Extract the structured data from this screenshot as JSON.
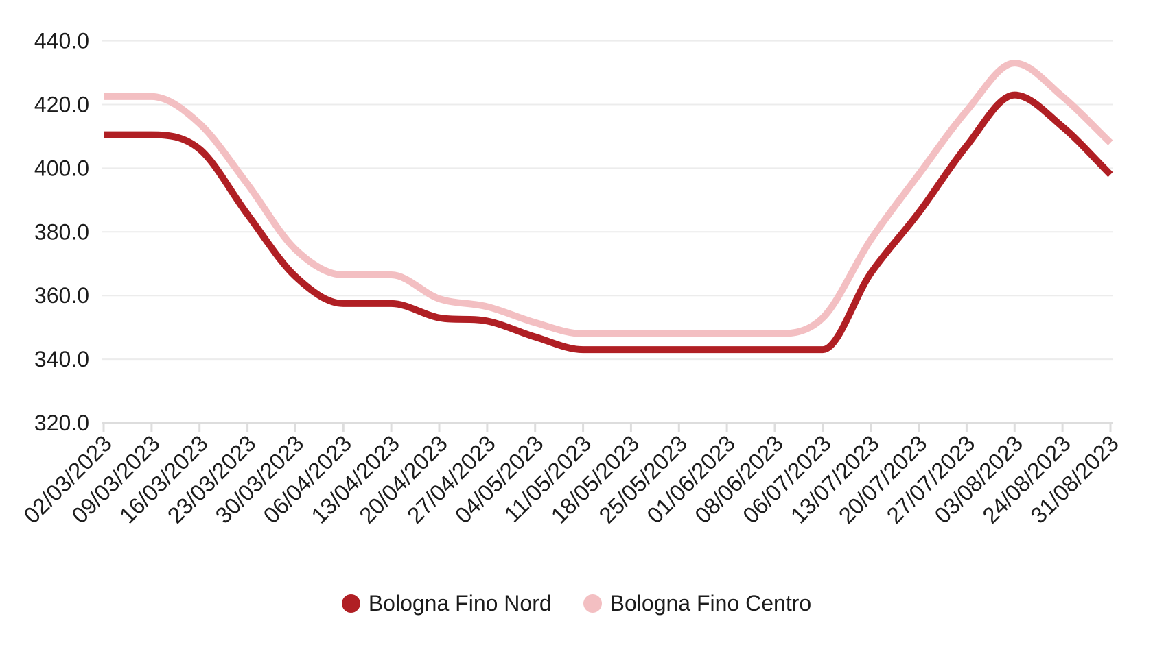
{
  "chart_data": {
    "type": "line",
    "title": "",
    "curve": "smooth-monotone",
    "categories": [
      "02/03/2023",
      "09/03/2023",
      "16/03/2023",
      "23/03/2023",
      "30/03/2023",
      "06/04/2023",
      "13/04/2023",
      "20/04/2023",
      "27/04/2023",
      "04/05/2023",
      "11/05/2023",
      "18/05/2023",
      "25/05/2023",
      "01/06/2023",
      "08/06/2023",
      "06/07/2023",
      "13/07/2023",
      "20/07/2023",
      "27/07/2023",
      "03/08/2023",
      "24/08/2023",
      "31/08/2023"
    ],
    "series": [
      {
        "name": "Bologna Fino Nord",
        "color": "#B01F24",
        "values": [
          410.5,
          410.5,
          406,
          385.5,
          366,
          357.5,
          357.5,
          353,
          352,
          347,
          343,
          343,
          343,
          343,
          343,
          343,
          367,
          386,
          407,
          423,
          413,
          398
        ]
      },
      {
        "name": "Bologna Fino Centro",
        "color": "#F3BFC2",
        "values": [
          422.5,
          422.5,
          414,
          395,
          374.5,
          366.5,
          366.5,
          359,
          356.5,
          351.5,
          348,
          348,
          348,
          348,
          348,
          353,
          377.5,
          398,
          418,
          433,
          422.5,
          408
        ]
      }
    ],
    "ylim": [
      320,
      440
    ],
    "y_ticks": [
      320,
      340,
      360,
      380,
      400,
      420,
      440
    ],
    "y_tick_labels": [
      "320.0",
      "340.0",
      "360.0",
      "380.0",
      "400.0",
      "420.0",
      "440.0"
    ],
    "x_label_rotation_deg": -45,
    "grid": true,
    "legend_position": "bottom",
    "line_width": 10
  },
  "colors": {
    "background": "#FFFFFF",
    "gridline": "#ECECEC",
    "axis_line": "#DDDDDD",
    "tick": "#DDDDDD",
    "label_text": "#1C1C1C"
  }
}
